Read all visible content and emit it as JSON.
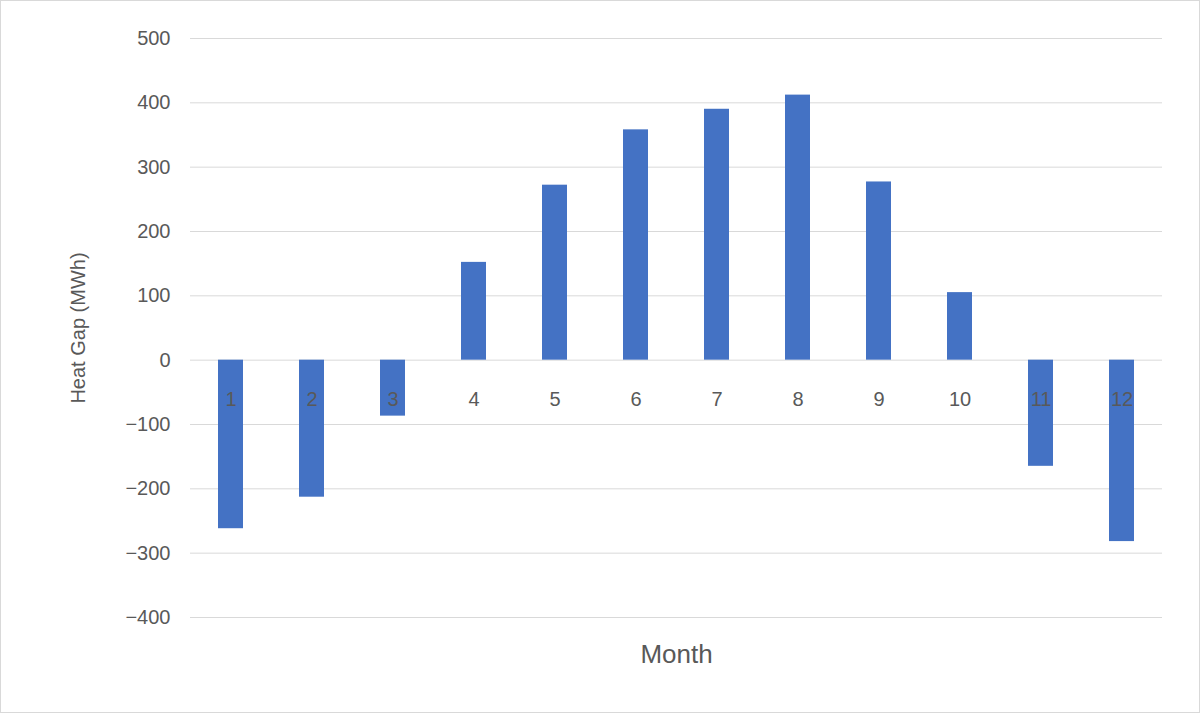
{
  "chart_data": {
    "type": "bar",
    "x_label": "Month",
    "y_label": "Heat Gap (MWh)",
    "categories": [
      1,
      2,
      3,
      4,
      5,
      6,
      7,
      8,
      9,
      10,
      11,
      12
    ],
    "values": [
      -262,
      -213,
      -87,
      152,
      272,
      358,
      390,
      412,
      277,
      105,
      -165,
      -282
    ],
    "color": "#4472c4",
    "ylim": [
      -400,
      500
    ],
    "yticks": [
      -400,
      -300,
      -200,
      -100,
      0,
      100,
      200,
      300,
      400,
      500
    ],
    "grid": true
  }
}
